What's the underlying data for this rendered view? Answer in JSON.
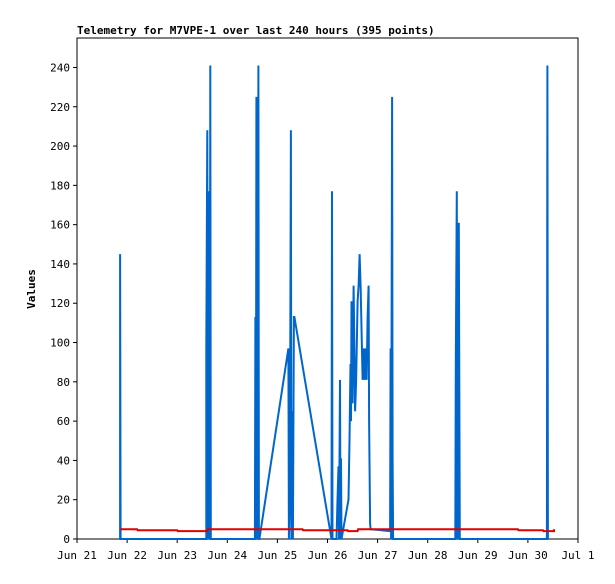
{
  "chart_data": {
    "type": "line",
    "title": "Telemetry for M7VPE-1 over last 240 hours (395 points)",
    "xlabel": "",
    "ylabel": "Values",
    "xlim": [
      0,
      10
    ],
    "ylim": [
      0,
      255
    ],
    "grid": false,
    "legend": "none",
    "x_ticks": [
      {
        "label": "Jun 21",
        "value": 0
      },
      {
        "label": "Jun 22",
        "value": 1
      },
      {
        "label": "Jun 23",
        "value": 2
      },
      {
        "label": "Jun 24",
        "value": 3
      },
      {
        "label": "Jun 25",
        "value": 4
      },
      {
        "label": "Jun 26",
        "value": 5
      },
      {
        "label": "Jun 27",
        "value": 6
      },
      {
        "label": "Jun 28",
        "value": 7
      },
      {
        "label": "Jun 29",
        "value": 8
      },
      {
        "label": "Jun 30",
        "value": 9
      },
      {
        "label": "Jul 1",
        "value": 10
      }
    ],
    "y_ticks": [
      0,
      20,
      40,
      60,
      80,
      100,
      120,
      140,
      160,
      180,
      200,
      220,
      240
    ],
    "series": [
      {
        "color": "#0066cc",
        "points": [
          [
            0.86,
            0
          ],
          [
            0.86,
            145
          ],
          [
            0.87,
            0
          ],
          [
            2.58,
            0
          ],
          [
            2.58,
            97
          ],
          [
            2.6,
            208
          ],
          [
            2.61,
            0
          ],
          [
            2.62,
            105
          ],
          [
            2.64,
            177
          ],
          [
            2.65,
            0
          ],
          [
            2.66,
            241
          ],
          [
            2.67,
            0
          ],
          [
            3.55,
            0
          ],
          [
            3.56,
            113
          ],
          [
            3.57,
            0
          ],
          [
            3.58,
            225
          ],
          [
            3.6,
            0
          ],
          [
            3.61,
            97
          ],
          [
            3.62,
            241
          ],
          [
            3.63,
            0
          ],
          [
            3.64,
            0
          ],
          [
            4.22,
            97
          ],
          [
            4.23,
            0
          ],
          [
            4.25,
            25
          ],
          [
            4.27,
            208
          ],
          [
            4.28,
            0
          ],
          [
            4.3,
            65
          ],
          [
            4.31,
            0
          ],
          [
            4.33,
            113
          ],
          [
            4.34,
            113
          ],
          [
            5.08,
            0
          ],
          [
            5.09,
            177
          ],
          [
            5.1,
            0
          ],
          [
            5.18,
            0
          ],
          [
            5.2,
            20
          ],
          [
            5.22,
            37
          ],
          [
            5.23,
            0
          ],
          [
            5.25,
            81
          ],
          [
            5.26,
            0
          ],
          [
            5.27,
            41
          ],
          [
            5.28,
            0
          ],
          [
            5.42,
            20
          ],
          [
            5.44,
            50
          ],
          [
            5.46,
            89
          ],
          [
            5.47,
            60
          ],
          [
            5.48,
            121
          ],
          [
            5.5,
            69
          ],
          [
            5.52,
            129
          ],
          [
            5.55,
            65
          ],
          [
            5.57,
            80
          ],
          [
            5.6,
            121
          ],
          [
            5.62,
            129
          ],
          [
            5.64,
            145
          ],
          [
            5.66,
            129
          ],
          [
            5.68,
            105
          ],
          [
            5.7,
            81
          ],
          [
            5.72,
            97
          ],
          [
            5.74,
            81
          ],
          [
            5.76,
            97
          ],
          [
            5.78,
            81
          ],
          [
            5.8,
            113
          ],
          [
            5.82,
            129
          ],
          [
            5.83,
            60
          ],
          [
            5.85,
            8
          ],
          [
            5.86,
            5
          ],
          [
            5.87,
            5
          ],
          [
            6.25,
            4
          ],
          [
            6.26,
            97
          ],
          [
            6.27,
            0
          ],
          [
            6.29,
            225
          ],
          [
            6.3,
            41
          ],
          [
            6.31,
            0
          ],
          [
            7.55,
            0
          ],
          [
            7.56,
            89
          ],
          [
            7.58,
            177
          ],
          [
            7.59,
            0
          ],
          [
            7.6,
            89
          ],
          [
            7.61,
            0
          ],
          [
            7.62,
            161
          ],
          [
            7.63,
            81
          ],
          [
            7.64,
            0
          ],
          [
            9.38,
            0
          ],
          [
            9.39,
            241
          ],
          [
            9.4,
            0
          ]
        ]
      },
      {
        "color": "#e00000",
        "points": [
          [
            0.86,
            5
          ],
          [
            1.2,
            5
          ],
          [
            1.21,
            4.5
          ],
          [
            2.0,
            4.5
          ],
          [
            2.01,
            4
          ],
          [
            2.6,
            4
          ],
          [
            2.61,
            5
          ],
          [
            4.5,
            5
          ],
          [
            4.51,
            4.5
          ],
          [
            5.4,
            4.5
          ],
          [
            5.41,
            4
          ],
          [
            5.6,
            4
          ],
          [
            5.61,
            5
          ],
          [
            8.8,
            5
          ],
          [
            8.81,
            4.5
          ],
          [
            9.3,
            4.5
          ],
          [
            9.31,
            4
          ],
          [
            9.52,
            4
          ],
          [
            9.52,
            5
          ]
        ]
      }
    ]
  }
}
